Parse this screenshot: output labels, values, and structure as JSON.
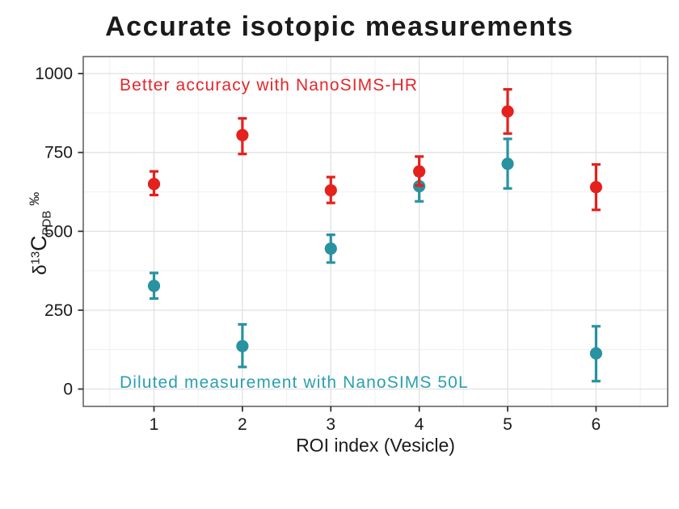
{
  "chart_data": {
    "type": "scatter",
    "title": "Accurate isotopic measurements",
    "xlabel": "ROI index (Vesicle)",
    "ylabel": "δ13C PDB ‰",
    "ylabel_parts": {
      "delta": "δ",
      "isotope": "13",
      "element": "C",
      "subscript": "PDB",
      "permil": "‰"
    },
    "x": [
      1,
      2,
      3,
      4,
      5,
      6
    ],
    "x_tick_labels": [
      "1",
      "2",
      "3",
      "4",
      "5",
      "6"
    ],
    "y_ticks": [
      0,
      250,
      500,
      750,
      1000
    ],
    "y_tick_labels": [
      "0",
      "250",
      "500",
      "750",
      "1000"
    ],
    "xlim": [
      0.2,
      6.81
    ],
    "ylim": [
      -55,
      1054
    ],
    "x_minor": [
      0.5,
      1.5,
      2.5,
      3.5,
      4.5,
      5.5,
      6.5
    ],
    "y_minor": [
      125,
      375,
      625,
      875
    ],
    "grid": true,
    "legend_position": "none",
    "series": [
      {
        "name": "NanoSIMS 50L",
        "color": "#2892a0",
        "values": [
          327,
          136,
          445,
          643,
          714,
          113
        ],
        "ymin": [
          287,
          70,
          401,
          595,
          636,
          25
        ],
        "ymax": [
          368,
          205,
          489,
          678,
          793,
          199
        ]
      },
      {
        "name": "NanoSIMS-HR",
        "color": "#e4211c",
        "values": [
          650,
          805,
          630,
          690,
          880,
          640
        ],
        "ymin": [
          615,
          745,
          590,
          645,
          810,
          568
        ],
        "ymax": [
          690,
          858,
          672,
          737,
          950,
          712
        ]
      }
    ],
    "annotations": [
      {
        "text": "Better accuracy with NanoSIMS-HR",
        "color": "#e5262b",
        "x": 2.5,
        "y": 960
      },
      {
        "text": "Diluted measurement with NanoSIMS 50L",
        "color": "#2ba0ad",
        "x": 3.0,
        "y": 20
      }
    ]
  },
  "style": {
    "grid_major_color": "#e3e3e3",
    "grid_minor_color": "#f1f1f1",
    "panel_border_color": "#4f4f4f",
    "tick_color": "#333333",
    "tick_label_color": "#1a1a1a"
  }
}
